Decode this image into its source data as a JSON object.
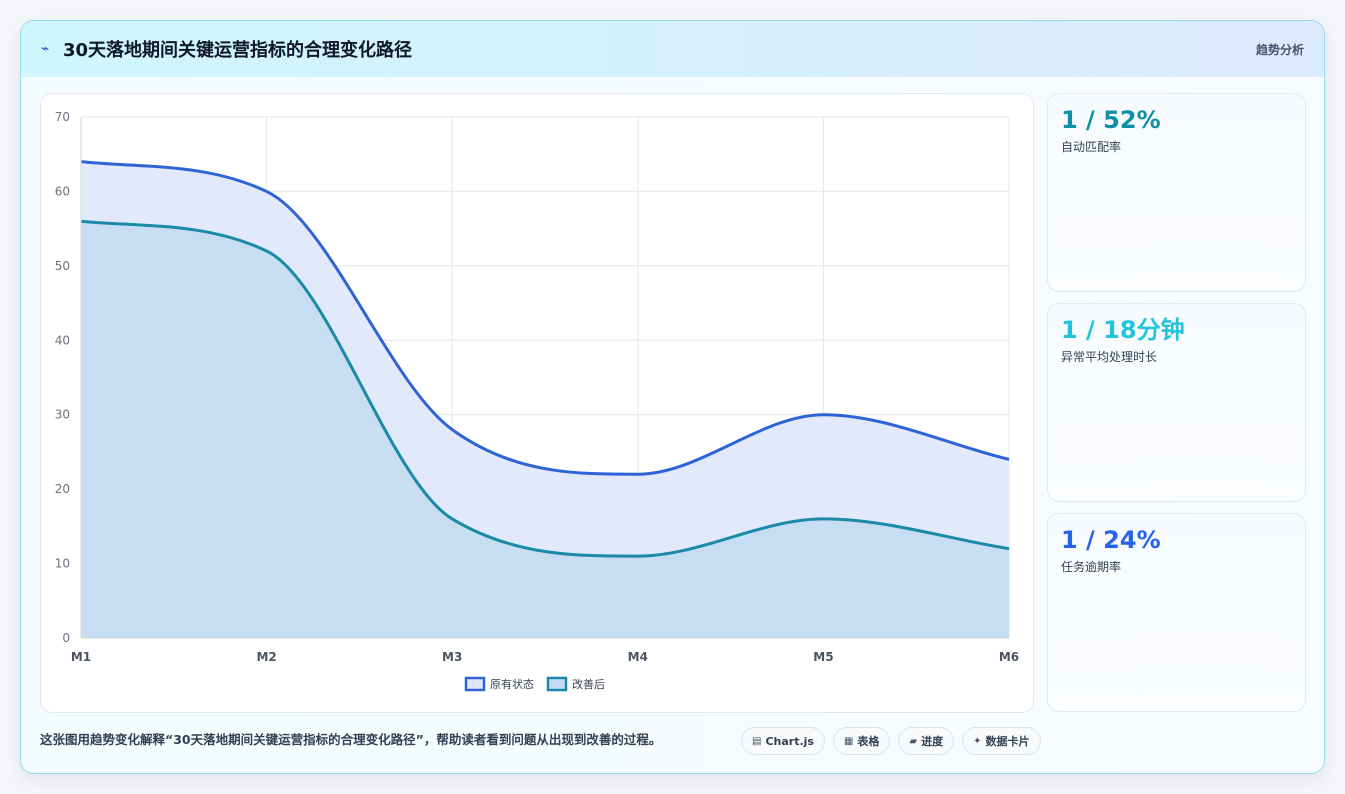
{
  "header": {
    "icon": "sparkline-icon",
    "title": "30天落地期间关键运营指标的合理变化路径",
    "tag": "趋势分析"
  },
  "stats": [
    {
      "value": "1 / 52%",
      "label": "自动匹配率",
      "color": "#0e8fa8"
    },
    {
      "value": "1 / 18分钟",
      "label": "异常平均处理时长",
      "color": "#22c3dc"
    },
    {
      "value": "1 / 24%",
      "label": "任务逾期率",
      "color": "#2563eb"
    }
  ],
  "footer": {
    "text": "这张图用趋势变化解释“30天落地期间关键运营指标的合理变化路径”，帮助读者看到问题从出现到改善的过程。",
    "chips": [
      {
        "icon": "chart-icon",
        "glyph": "▤",
        "label": "Chart.js"
      },
      {
        "icon": "table-icon",
        "glyph": "▦",
        "label": "表格"
      },
      {
        "icon": "progress-icon",
        "glyph": "▰",
        "label": "进度"
      },
      {
        "icon": "card-icon",
        "glyph": "✦",
        "label": "数据卡片"
      }
    ]
  },
  "chart_data": {
    "type": "area",
    "categories": [
      "M1",
      "M2",
      "M3",
      "M4",
      "M5",
      "M6"
    ],
    "series": [
      {
        "name": "原有状态",
        "values": [
          64,
          60,
          28,
          22,
          30,
          24
        ],
        "stroke": "#2f64d6",
        "fill": "#dfe8fb"
      },
      {
        "name": "改善后",
        "values": [
          56,
          52,
          16,
          11,
          16,
          12
        ],
        "stroke": "#1a8aa8",
        "fill": "#c4dcf1"
      }
    ],
    "ylim": [
      0,
      70
    ],
    "yticks": [
      0,
      10,
      20,
      30,
      40,
      50,
      60,
      70
    ],
    "grid": true,
    "legend": "bottom-center"
  }
}
